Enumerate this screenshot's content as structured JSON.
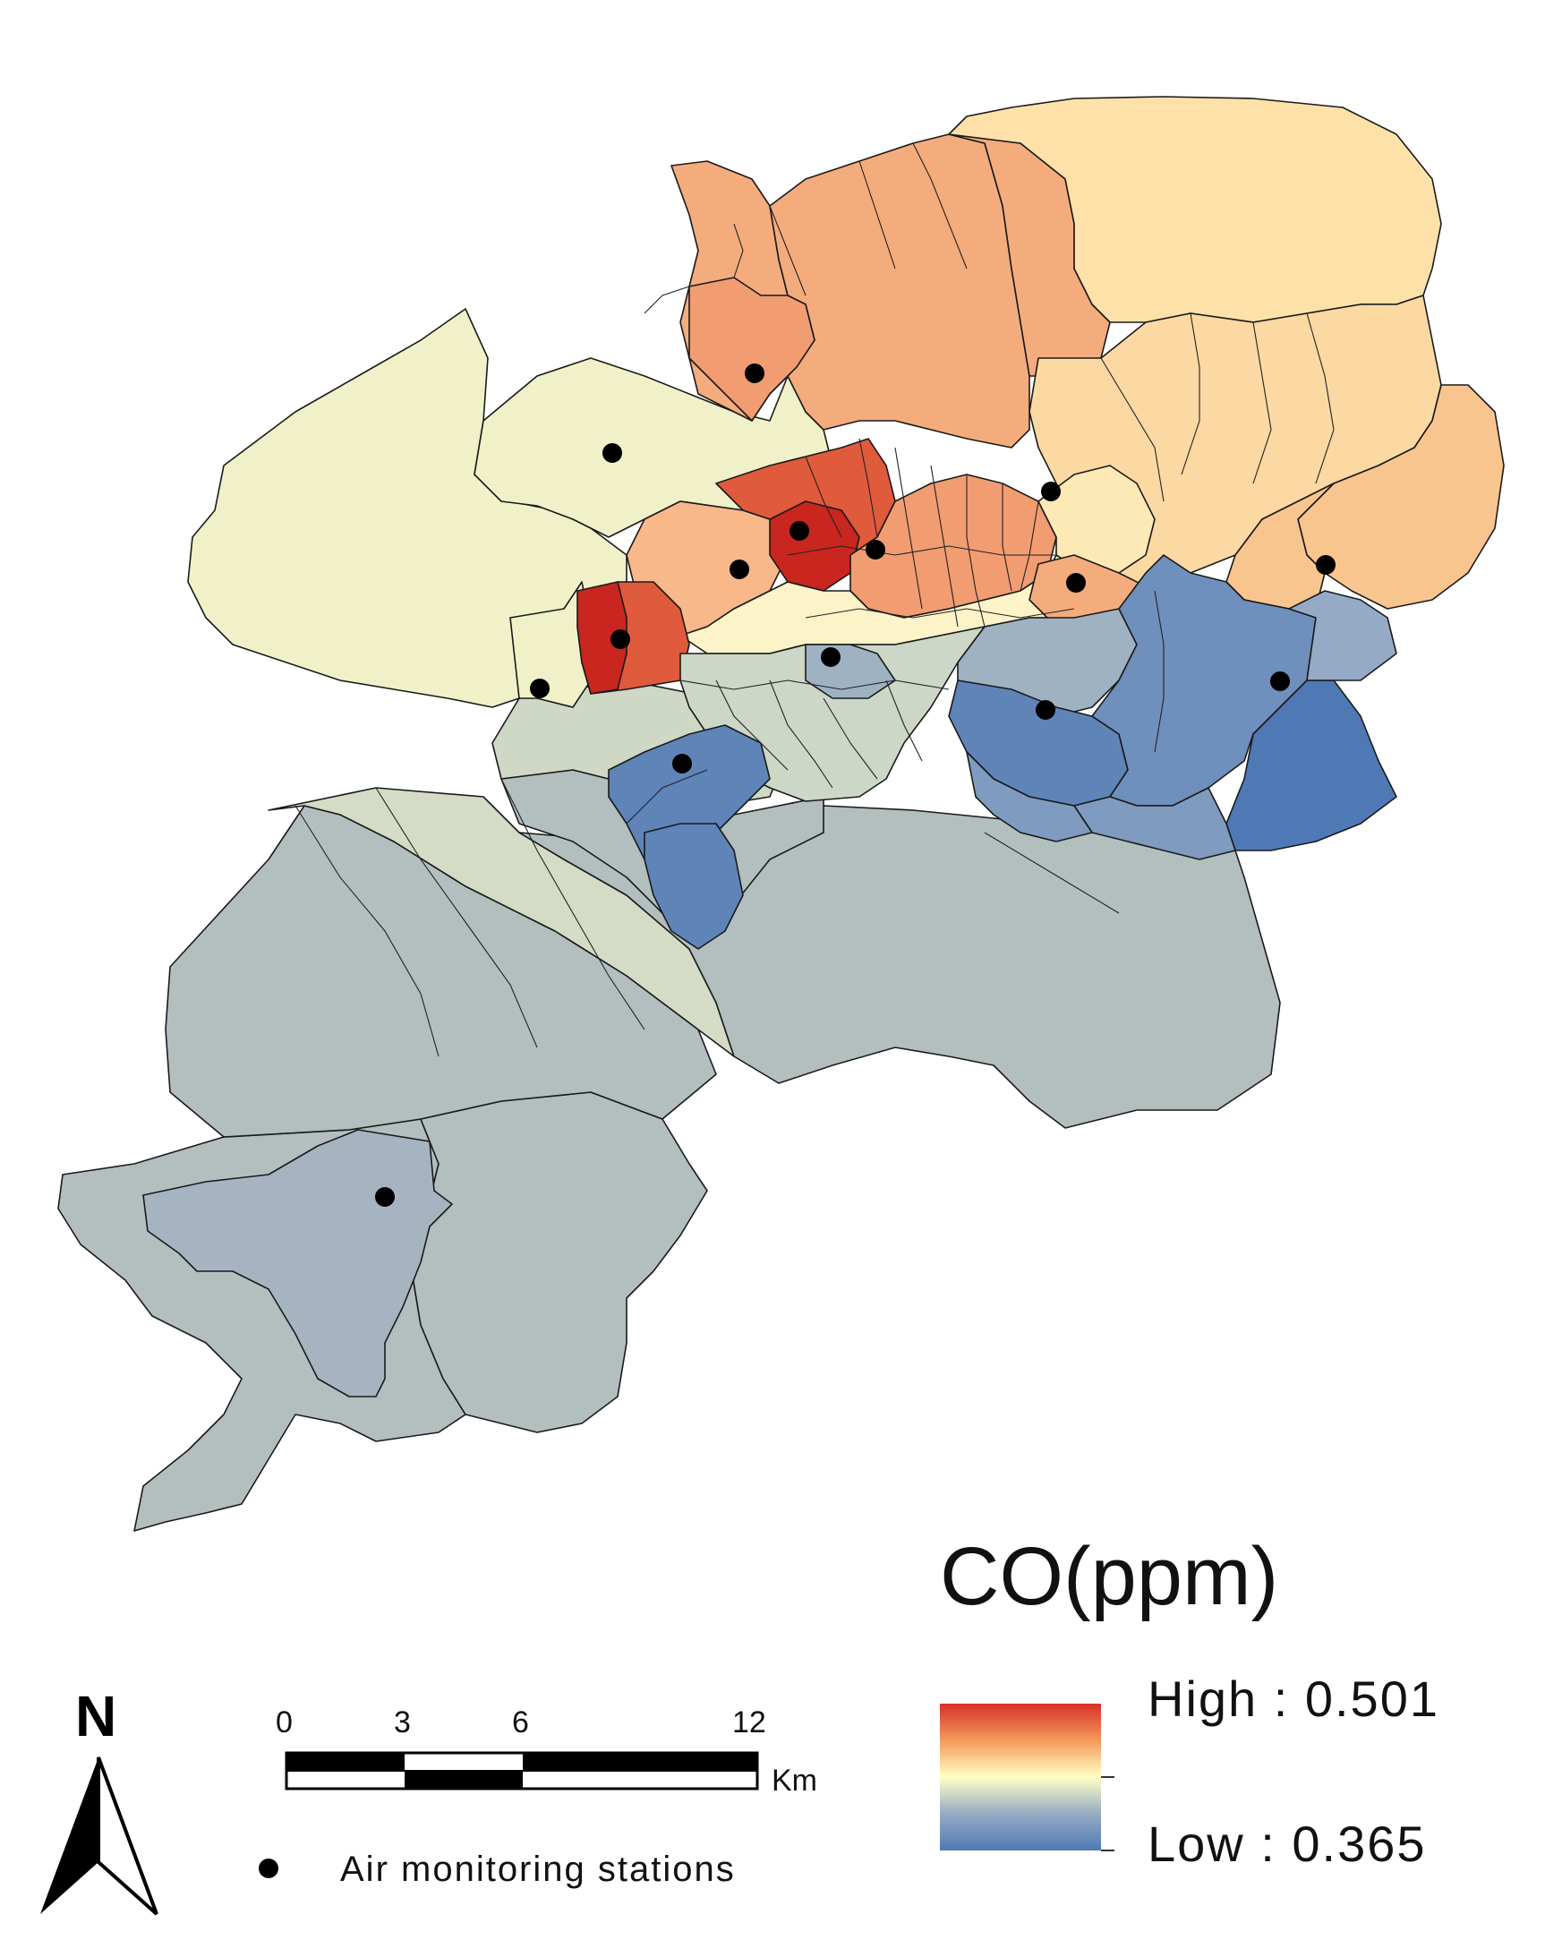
{
  "legend": {
    "title": "CO(ppm)",
    "high_label": "High : 0.501",
    "low_label": "Low : 0.365",
    "high_color": "#d73027",
    "mid_color": "#ffffbf",
    "low_color": "#4575b4"
  },
  "scale_bar": {
    "ticks": [
      "0",
      "3",
      "6",
      "12"
    ],
    "unit": "Km"
  },
  "north_arrow": {
    "label": "N"
  },
  "stations_legend": {
    "label": "Air monitoring stations"
  },
  "icons": [
    "north-arrow-icon",
    "station-dot-icon"
  ]
}
